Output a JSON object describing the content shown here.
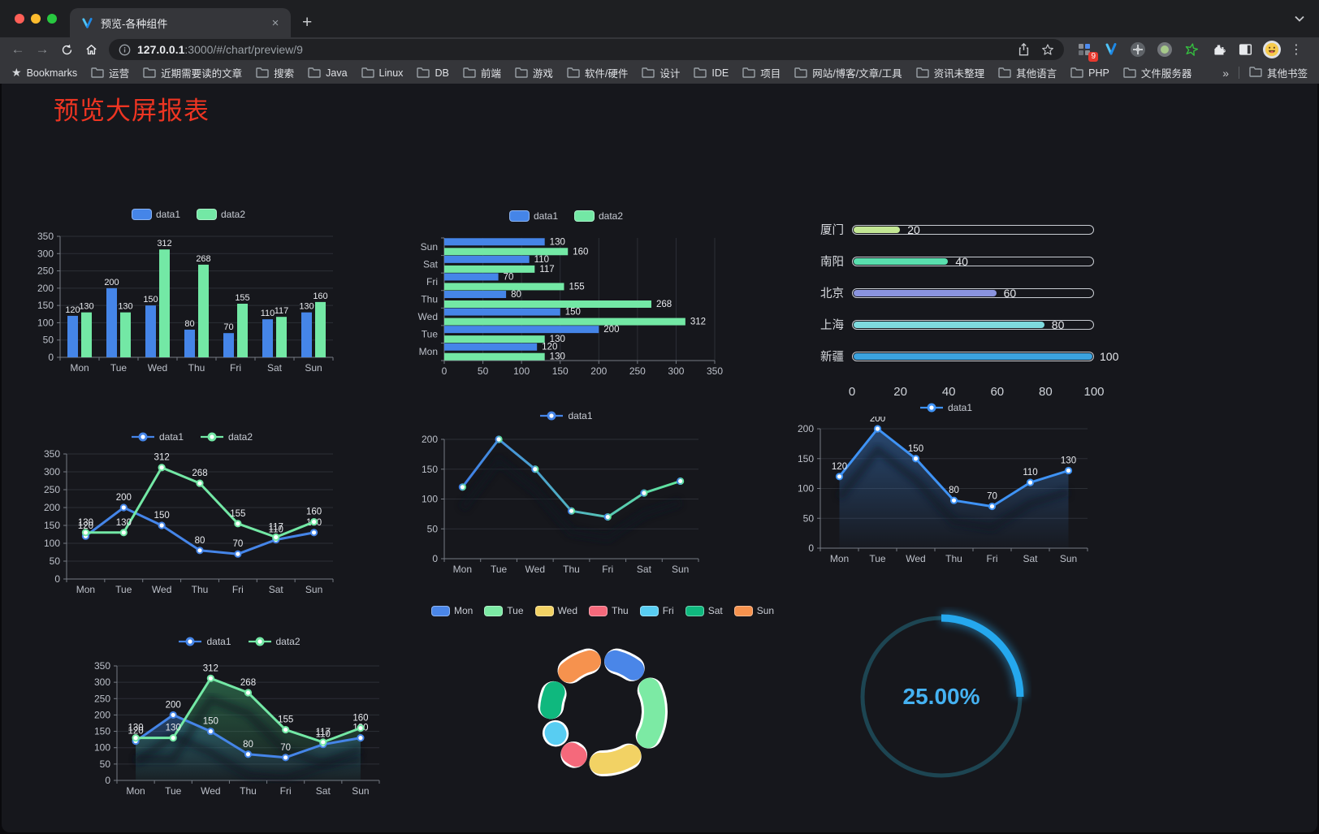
{
  "browser": {
    "traffic_lights": [
      "#ff5f57",
      "#febc2e",
      "#28c840"
    ],
    "tab_title": "预览-各种组件",
    "close_glyph": "×",
    "new_tab_glyph": "+",
    "url_host": "127.0.0.1",
    "url_rest": ":3000/#/chart/preview/9",
    "extension_badge": "9",
    "menu_glyph": "⋮",
    "bookmarks_label": "Bookmarks",
    "bookmarks": [
      "运营",
      "近期需要读的文章",
      "搜索",
      "Java",
      "Linux",
      "DB",
      "前端",
      "游戏",
      "软件/硬件",
      "设计",
      "IDE",
      "项目",
      "网站/博客/文章/工具",
      "资讯未整理",
      "其他语言",
      "PHP",
      "文件服务器"
    ],
    "bookmarks_overflow": "»",
    "other_bookmarks_label": "其他书签"
  },
  "page": {
    "title": "预览大屏报表",
    "title_color": "#ee3522",
    "background": "#16171c"
  },
  "chart_data": [
    {
      "id": "barGrouped",
      "type": "bar",
      "categories": [
        "Mon",
        "Tue",
        "Wed",
        "Thu",
        "Fri",
        "Sat",
        "Sun"
      ],
      "series": [
        {
          "name": "data1",
          "color": "#4585e8",
          "values": [
            120,
            200,
            150,
            80,
            70,
            110,
            130
          ]
        },
        {
          "name": "data2",
          "color": "#73e8a5",
          "values": [
            130,
            130,
            312,
            268,
            155,
            117,
            160
          ]
        }
      ],
      "ylim": [
        0,
        350
      ],
      "ytick_step": 50,
      "legend_position": "top",
      "grid": true
    },
    {
      "id": "barHorizontal",
      "type": "bar-horizontal",
      "categories": [
        "Mon",
        "Tue",
        "Wed",
        "Thu",
        "Fri",
        "Sat",
        "Sun"
      ],
      "display_order_top_to_bottom": [
        "Sun",
        "Sat",
        "Fri",
        "Thu",
        "Wed",
        "Tue",
        "Mon"
      ],
      "series": [
        {
          "name": "data1",
          "color": "#4585e8",
          "values": [
            120,
            200,
            150,
            80,
            70,
            110,
            130
          ]
        },
        {
          "name": "data2",
          "color": "#73e8a5",
          "values": [
            130,
            130,
            312,
            268,
            155,
            117,
            160
          ]
        }
      ],
      "xlim": [
        0,
        350
      ],
      "xtick_step": 50,
      "legend_position": "top",
      "grid": true
    },
    {
      "id": "cityProgress",
      "type": "progress",
      "items": [
        {
          "label": "厦门",
          "value": 20,
          "color": "#c3e794"
        },
        {
          "label": "南阳",
          "value": 40,
          "color": "#59dfae"
        },
        {
          "label": "北京",
          "value": 60,
          "color": "#8a94df"
        },
        {
          "label": "上海",
          "value": 80,
          "color": "#7edade"
        },
        {
          "label": "新疆",
          "value": 100,
          "color": "#3ba3df"
        }
      ],
      "max": 100,
      "axis_ticks": [
        0,
        20,
        40,
        60,
        80,
        100
      ]
    },
    {
      "id": "lineDual",
      "type": "line",
      "categories": [
        "Mon",
        "Tue",
        "Wed",
        "Thu",
        "Fri",
        "Sat",
        "Sun"
      ],
      "series": [
        {
          "name": "data1",
          "color": "#4585e8",
          "values": [
            120,
            200,
            150,
            80,
            70,
            110,
            130
          ]
        },
        {
          "name": "data2",
          "color": "#73e8a5",
          "values": [
            130,
            130,
            312,
            268,
            155,
            117,
            160
          ]
        }
      ],
      "ylim": [
        0,
        350
      ],
      "ytick_step": 50,
      "show_labels": true,
      "legend_position": "top",
      "grid": true
    },
    {
      "id": "lineGradient",
      "type": "line",
      "categories": [
        "Mon",
        "Tue",
        "Wed",
        "Thu",
        "Fri",
        "Sat",
        "Sun"
      ],
      "series": [
        {
          "name": "data1",
          "color": "#4585e8",
          "values": [
            120,
            200,
            150,
            80,
            70,
            110,
            130
          ]
        }
      ],
      "gradient_stroke": [
        "#3f7ee8",
        "#62e89b"
      ],
      "ylim": [
        0,
        200
      ],
      "ytick_step": 50,
      "show_labels": false,
      "shadow": true,
      "legend_position": "top",
      "grid": true
    },
    {
      "id": "areaSingle",
      "type": "line",
      "categories": [
        "Mon",
        "Tue",
        "Wed",
        "Thu",
        "Fri",
        "Sat",
        "Sun"
      ],
      "series": [
        {
          "name": "data1",
          "color": "#3f93f5",
          "values": [
            120,
            200,
            150,
            80,
            70,
            110,
            130
          ],
          "fill_from": "rgba(56,112,180,0.55)",
          "fill_to": "rgba(56,112,180,0.03)"
        }
      ],
      "ylim": [
        0,
        200
      ],
      "ytick_step": 50,
      "show_labels": true,
      "shadow": true,
      "legend_position": "top",
      "grid": true
    },
    {
      "id": "areaDual",
      "type": "line",
      "categories": [
        "Mon",
        "Tue",
        "Wed",
        "Thu",
        "Fri",
        "Sat",
        "Sun"
      ],
      "series": [
        {
          "name": "data1",
          "color": "#4585e8",
          "values": [
            120,
            200,
            150,
            80,
            70,
            110,
            130
          ],
          "fill_from": "rgba(52,108,178,0.50)",
          "fill_to": "rgba(52,108,178,0.04)"
        },
        {
          "name": "data2",
          "color": "#73e8a5",
          "values": [
            130,
            130,
            312,
            268,
            155,
            117,
            160
          ],
          "fill_from": "rgba(56,150,100,0.55)",
          "fill_to": "rgba(56,150,100,0.05)"
        }
      ],
      "ylim": [
        0,
        350
      ],
      "ytick_step": 50,
      "show_labels": true,
      "shadow": true,
      "legend_position": "top",
      "grid": true
    },
    {
      "id": "weekDonut",
      "type": "pie",
      "labels": [
        "Mon",
        "Tue",
        "Wed",
        "Thu",
        "Fri",
        "Sat",
        "Sun"
      ],
      "values": [
        120,
        200,
        150,
        80,
        70,
        110,
        130
      ],
      "colors": [
        "#4a86e8",
        "#7ceaa4",
        "#f2d264",
        "#f5697b",
        "#58cdf2",
        "#0fb87e",
        "#f6924e"
      ],
      "legend_position": "top",
      "inner_radius_ratio": 0.6
    },
    {
      "id": "percentGauge",
      "type": "gauge",
      "value": 25,
      "display": "25.00%",
      "color": "#25a8ee",
      "track_color": "#1d4552",
      "text_color": "#45b2f2"
    }
  ]
}
